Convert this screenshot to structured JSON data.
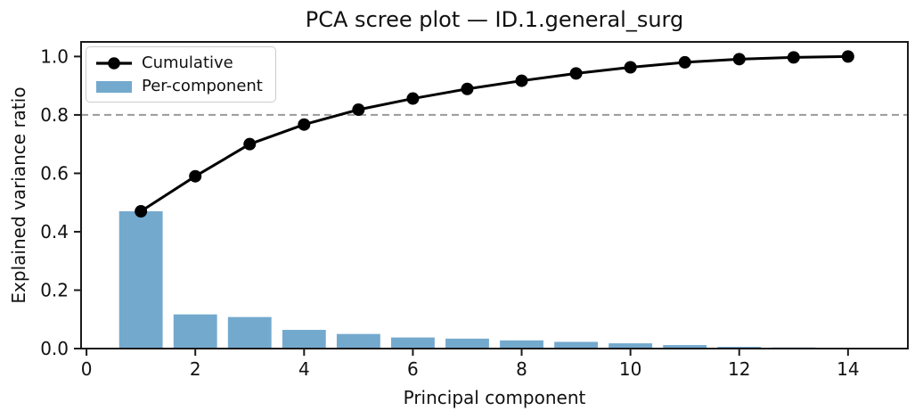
{
  "chart_data": {
    "type": "bar",
    "title": "PCA scree plot — ID.1.general_surg",
    "xlabel": "Principal component",
    "ylabel": "Explained variance ratio",
    "x": [
      1,
      2,
      3,
      4,
      5,
      6,
      7,
      8,
      9,
      10,
      11,
      12,
      13,
      14
    ],
    "series": [
      {
        "name": "Cumulative",
        "type": "line",
        "color": "#000000",
        "values": [
          0.47,
          0.59,
          0.7,
          0.767,
          0.818,
          0.856,
          0.889,
          0.917,
          0.942,
          0.963,
          0.98,
          0.991,
          0.997,
          1.0
        ]
      },
      {
        "name": "Per-component",
        "type": "bar",
        "color": "#74a9ce",
        "values": [
          0.47,
          0.117,
          0.108,
          0.064,
          0.05,
          0.038,
          0.034,
          0.028,
          0.023,
          0.018,
          0.012,
          0.006,
          0.004,
          0.002
        ]
      }
    ],
    "threshold_line": {
      "y": 0.8,
      "style": "dashed",
      "color": "#9a9a9a"
    },
    "xticks": [
      0,
      2,
      4,
      6,
      8,
      10,
      12,
      14
    ],
    "xtick_labels": [
      "0",
      "2",
      "4",
      "6",
      "8",
      "10",
      "12",
      "14"
    ],
    "yticks": [
      0.0,
      0.2,
      0.4,
      0.6,
      0.8,
      1.0
    ],
    "ytick_labels": [
      "0.0",
      "0.2",
      "0.4",
      "0.6",
      "0.8",
      "1.0"
    ],
    "xlim": [
      -0.1,
      15.1
    ],
    "ylim": [
      0,
      1.05
    ],
    "bar_width": 0.8,
    "grid": "off",
    "legend": {
      "position": "upper left",
      "entries": [
        "Cumulative",
        "Per-component"
      ]
    },
    "axis_color": "#1a1a1a"
  }
}
